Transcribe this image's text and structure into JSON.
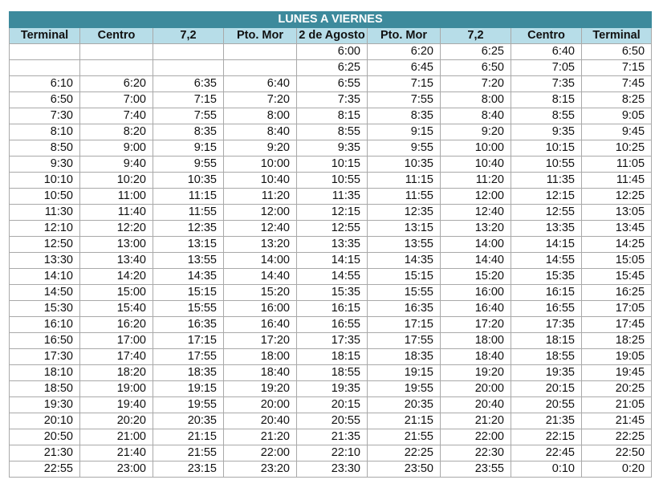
{
  "title": "LUNES A VIERNES",
  "columns": [
    "Terminal",
    "Centro",
    "7,2",
    "Pto. Mor",
    "2 de Agosto",
    "Pto. Mor",
    "7,2",
    "Centro",
    "Terminal"
  ],
  "rows": [
    [
      "",
      "",
      "",
      "",
      "6:00",
      "6:20",
      "6:25",
      "6:40",
      "6:50"
    ],
    [
      "",
      "",
      "",
      "",
      "6:25",
      "6:45",
      "6:50",
      "7:05",
      "7:15"
    ],
    [
      "6:10",
      "6:20",
      "6:35",
      "6:40",
      "6:55",
      "7:15",
      "7:20",
      "7:35",
      "7:45"
    ],
    [
      "6:50",
      "7:00",
      "7:15",
      "7:20",
      "7:35",
      "7:55",
      "8:00",
      "8:15",
      "8:25"
    ],
    [
      "7:30",
      "7:40",
      "7:55",
      "8:00",
      "8:15",
      "8:35",
      "8:40",
      "8:55",
      "9:05"
    ],
    [
      "8:10",
      "8:20",
      "8:35",
      "8:40",
      "8:55",
      "9:15",
      "9:20",
      "9:35",
      "9:45"
    ],
    [
      "8:50",
      "9:00",
      "9:15",
      "9:20",
      "9:35",
      "9:55",
      "10:00",
      "10:15",
      "10:25"
    ],
    [
      "9:30",
      "9:40",
      "9:55",
      "10:00",
      "10:15",
      "10:35",
      "10:40",
      "10:55",
      "11:05"
    ],
    [
      "10:10",
      "10:20",
      "10:35",
      "10:40",
      "10:55",
      "11:15",
      "11:20",
      "11:35",
      "11:45"
    ],
    [
      "10:50",
      "11:00",
      "11:15",
      "11:20",
      "11:35",
      "11:55",
      "12:00",
      "12:15",
      "12:25"
    ],
    [
      "11:30",
      "11:40",
      "11:55",
      "12:00",
      "12:15",
      "12:35",
      "12:40",
      "12:55",
      "13:05"
    ],
    [
      "12:10",
      "12:20",
      "12:35",
      "12:40",
      "12:55",
      "13:15",
      "13:20",
      "13:35",
      "13:45"
    ],
    [
      "12:50",
      "13:00",
      "13:15",
      "13:20",
      "13:35",
      "13:55",
      "14:00",
      "14:15",
      "14:25"
    ],
    [
      "13:30",
      "13:40",
      "13:55",
      "14:00",
      "14:15",
      "14:35",
      "14:40",
      "14:55",
      "15:05"
    ],
    [
      "14:10",
      "14:20",
      "14:35",
      "14:40",
      "14:55",
      "15:15",
      "15:20",
      "15:35",
      "15:45"
    ],
    [
      "14:50",
      "15:00",
      "15:15",
      "15:20",
      "15:35",
      "15:55",
      "16:00",
      "16:15",
      "16:25"
    ],
    [
      "15:30",
      "15:40",
      "15:55",
      "16:00",
      "16:15",
      "16:35",
      "16:40",
      "16:55",
      "17:05"
    ],
    [
      "16:10",
      "16:20",
      "16:35",
      "16:40",
      "16:55",
      "17:15",
      "17:20",
      "17:35",
      "17:45"
    ],
    [
      "16:50",
      "17:00",
      "17:15",
      "17:20",
      "17:35",
      "17:55",
      "18:00",
      "18:15",
      "18:25"
    ],
    [
      "17:30",
      "17:40",
      "17:55",
      "18:00",
      "18:15",
      "18:35",
      "18:40",
      "18:55",
      "19:05"
    ],
    [
      "18:10",
      "18:20",
      "18:35",
      "18:40",
      "18:55",
      "19:15",
      "19:20",
      "19:35",
      "19:45"
    ],
    [
      "18:50",
      "19:00",
      "19:15",
      "19:20",
      "19:35",
      "19:55",
      "20:00",
      "20:15",
      "20:25"
    ],
    [
      "19:30",
      "19:40",
      "19:55",
      "20:00",
      "20:15",
      "20:35",
      "20:40",
      "20:55",
      "21:05"
    ],
    [
      "20:10",
      "20:20",
      "20:35",
      "20:40",
      "20:55",
      "21:15",
      "21:20",
      "21:35",
      "21:45"
    ],
    [
      "20:50",
      "21:00",
      "21:15",
      "21:20",
      "21:35",
      "21:55",
      "22:00",
      "22:15",
      "22:25"
    ],
    [
      "21:30",
      "21:40",
      "21:55",
      "22:00",
      "22:10",
      "22:25",
      "22:30",
      "22:45",
      "22:50"
    ],
    [
      "22:55",
      "23:00",
      "23:15",
      "23:20",
      "23:30",
      "23:50",
      "23:55",
      "0:10",
      "0:20"
    ]
  ],
  "colors": {
    "title_bg": "#3d8a9c",
    "header_bg": "#b7dde8",
    "border": "#a9a9a9"
  }
}
